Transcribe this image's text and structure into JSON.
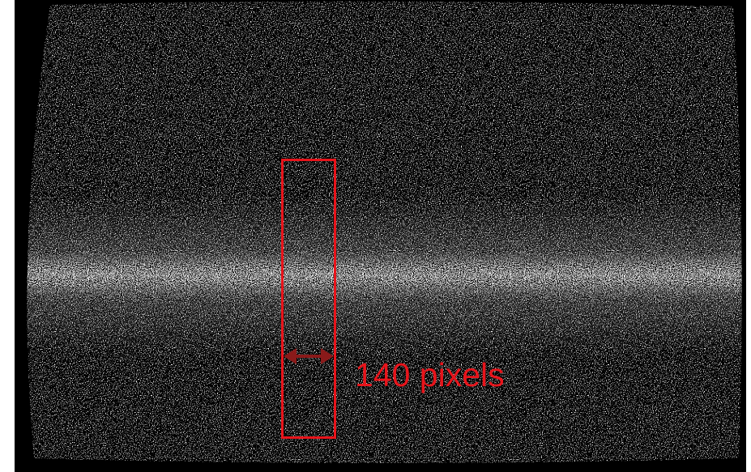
{
  "annotation": {
    "label": "140 pixels"
  }
}
